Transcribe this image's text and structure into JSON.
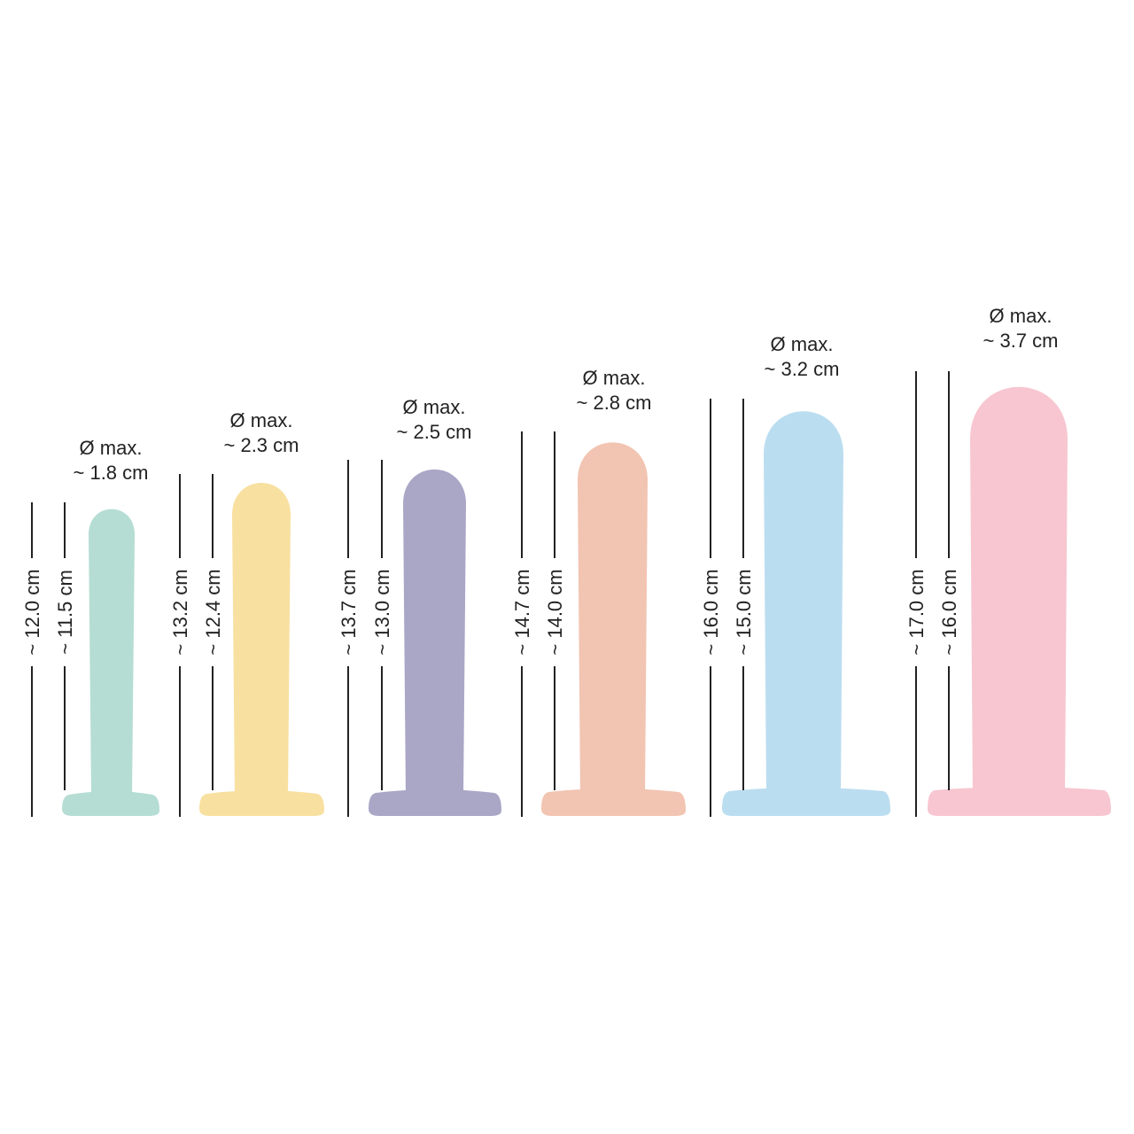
{
  "items": [
    {
      "diameter_label": "Ø max.",
      "diameter_value": "~ 1.8 cm",
      "total_length": "~ 12.0 cm",
      "insertable_length": "~ 11.5 cm",
      "color": "#B5DDD3"
    },
    {
      "diameter_label": "Ø max.",
      "diameter_value": "~ 2.3 cm",
      "total_length": "~ 13.2 cm",
      "insertable_length": "~ 12.4 cm",
      "color": "#F8E0A0"
    },
    {
      "diameter_label": "Ø max.",
      "diameter_value": "~ 2.5 cm",
      "total_length": "~ 13.7 cm",
      "insertable_length": "~ 13.0 cm",
      "color": "#A9A6C6"
    },
    {
      "diameter_label": "Ø max.",
      "diameter_value": "~ 2.8 cm",
      "total_length": "~ 14.7 cm",
      "insertable_length": "~ 14.0 cm",
      "color": "#F2C4B2"
    },
    {
      "diameter_label": "Ø max.",
      "diameter_value": "~ 3.2 cm",
      "total_length": "~ 16.0 cm",
      "insertable_length": "~ 15.0 cm",
      "color": "#BBDDF0"
    },
    {
      "diameter_label": "Ø max.",
      "diameter_value": "~ 3.7 cm",
      "total_length": "~ 17.0 cm",
      "insertable_length": "~ 16.0 cm",
      "color": "#F7C6D0"
    }
  ]
}
